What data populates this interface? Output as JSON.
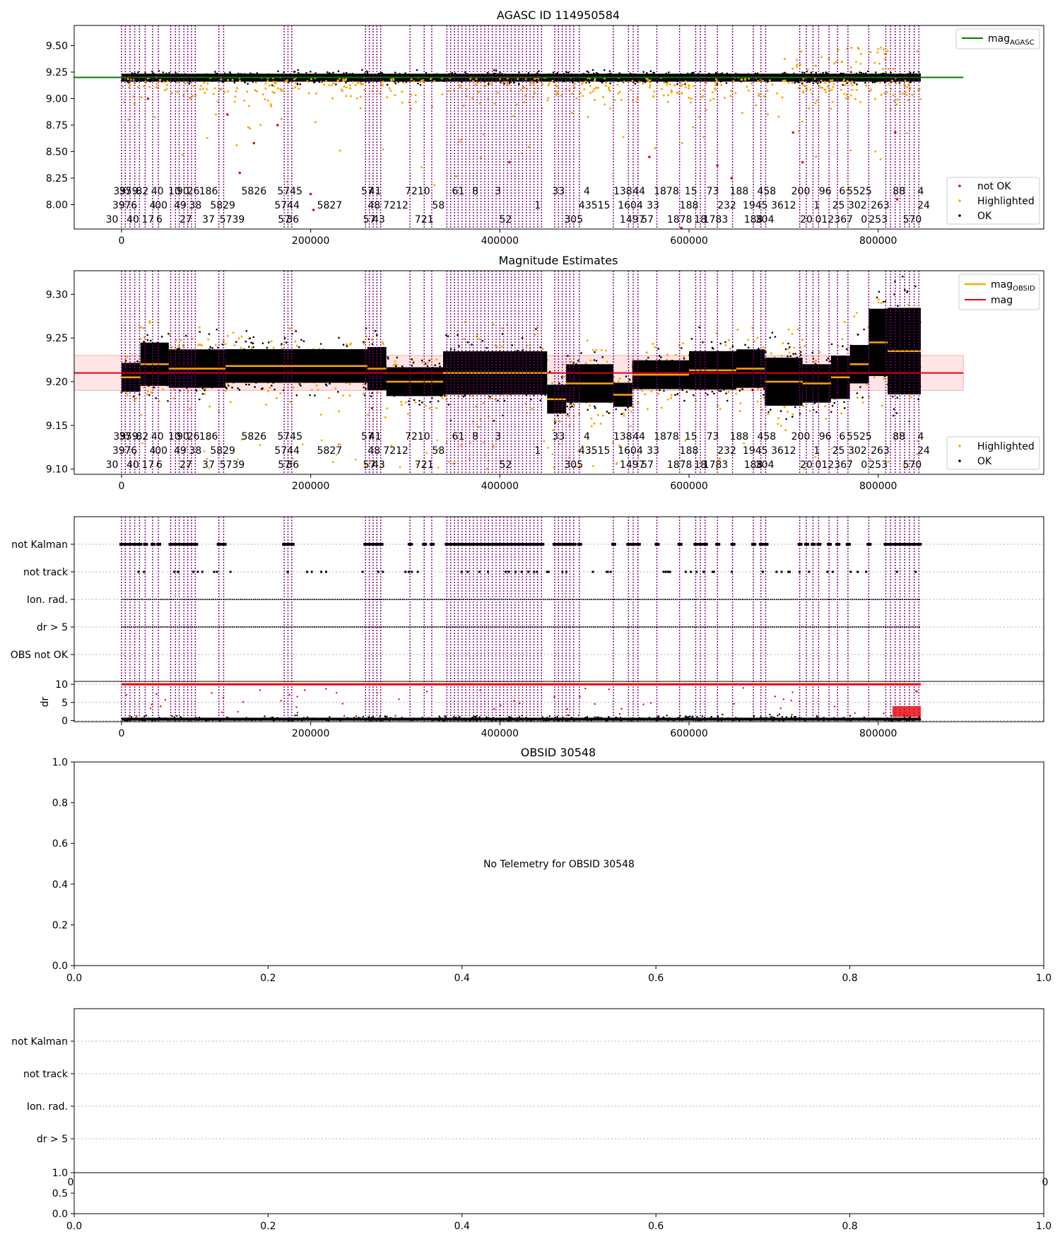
{
  "chart_data": [
    {
      "panel": "agasc",
      "type": "scatter",
      "title": "AGASC ID 114950584",
      "xlim": [
        -50000,
        975000
      ],
      "ylim": [
        7.77,
        9.69
      ],
      "xticks": [
        0,
        200000,
        400000,
        600000,
        800000
      ],
      "xtick_labels": [
        "0",
        "200000",
        "400000",
        "600000",
        "800000"
      ],
      "yticks": [
        8.0,
        8.25,
        8.5,
        8.75,
        9.0,
        9.25,
        9.5
      ],
      "ytick_labels": [
        "8.00",
        "8.25",
        "8.50",
        "8.75",
        "9.00",
        "9.25",
        "9.50"
      ],
      "mag_agasc": 9.2,
      "mag_agasc_xrange": [
        -50000,
        890000
      ],
      "ok_band": [
        9.15,
        9.27
      ],
      "legend_top": [
        "mag$_{AGASC}$"
      ],
      "legend_top_position": "upper right",
      "legend_bottom": [
        "not OK",
        "Highlighted",
        "OK"
      ],
      "legend_bottom_position": "lower right",
      "colors": {
        "ok": "#000000",
        "highlighted": "#ffa500",
        "not_ok": "#e8000b",
        "mag_agasc": "#008000",
        "obsid_line": "#800080"
      }
    },
    {
      "panel": "estimates",
      "type": "scatter",
      "title": "Magnitude Estimates",
      "xlim": [
        -50000,
        975000
      ],
      "ylim": [
        9.094,
        9.327
      ],
      "xticks": [
        0,
        200000,
        400000,
        600000,
        800000
      ],
      "xtick_labels": [
        "0",
        "200000",
        "400000",
        "600000",
        "800000"
      ],
      "yticks": [
        9.1,
        9.15,
        9.2,
        9.25,
        9.3
      ],
      "ytick_labels": [
        "9.10",
        "9.15",
        "9.20",
        "9.25",
        "9.30"
      ],
      "mag": 9.21,
      "mag_band": [
        9.19,
        9.23
      ],
      "legend_top": [
        "mag$_{OBSID}$",
        "mag"
      ],
      "legend_top_position": "upper right",
      "legend_bottom": [
        "Highlighted",
        "OK"
      ],
      "legend_bottom_position": "lower right",
      "mag_obsid_segments": [
        {
          "x": [
            0,
            20000
          ],
          "y": 9.205
        },
        {
          "x": [
            20000,
            50000
          ],
          "y": 9.22
        },
        {
          "x": [
            50000,
            110000
          ],
          "y": 9.215
        },
        {
          "x": [
            110000,
            260000
          ],
          "y": 9.218
        },
        {
          "x": [
            260000,
            280000
          ],
          "y": 9.215
        },
        {
          "x": [
            280000,
            340000
          ],
          "y": 9.2
        },
        {
          "x": [
            340000,
            450000
          ],
          "y": 9.21
        },
        {
          "x": [
            450000,
            470000
          ],
          "y": 9.18
        },
        {
          "x": [
            470000,
            520000
          ],
          "y": 9.198
        },
        {
          "x": [
            520000,
            540000
          ],
          "y": 9.185
        },
        {
          "x": [
            540000,
            600000
          ],
          "y": 9.208
        },
        {
          "x": [
            600000,
            650000
          ],
          "y": 9.213
        },
        {
          "x": [
            650000,
            680000
          ],
          "y": 9.215
        },
        {
          "x": [
            680000,
            720000
          ],
          "y": 9.2
        },
        {
          "x": [
            720000,
            750000
          ],
          "y": 9.198
        },
        {
          "x": [
            750000,
            770000
          ],
          "y": 9.205
        },
        {
          "x": [
            770000,
            790000
          ],
          "y": 9.22
        },
        {
          "x": [
            790000,
            810000
          ],
          "y": 9.245
        },
        {
          "x": [
            810000,
            845000
          ],
          "y": 9.235
        }
      ]
    },
    {
      "panel": "flags",
      "type": "scatter",
      "xlim": [
        -50000,
        975000
      ],
      "categories": [
        "not Kalman",
        "not track",
        "Ion. rad.",
        "dr > 5",
        "OBS not OK"
      ],
      "ylabel": "dr",
      "dr_yticks": [
        0,
        5,
        10
      ],
      "dr_ytick_labels": [
        "0",
        "5",
        "10"
      ],
      "dr_ylim": [
        -0.3,
        10.8
      ],
      "xticks": [
        0,
        200000,
        400000,
        600000,
        800000
      ],
      "xtick_labels": [
        "0",
        "200000",
        "400000",
        "600000",
        "800000"
      ]
    },
    {
      "panel": "obsid",
      "type": "scatter",
      "title": "OBSID 30548",
      "message": "No Telemetry for OBSID 30548",
      "xlim": [
        0,
        1
      ],
      "ylim": [
        0,
        1
      ],
      "xticks": [
        0,
        0.2,
        0.4,
        0.6,
        0.8,
        1.0
      ],
      "xtick_labels": [
        "0.0",
        "0.2",
        "0.4",
        "0.6",
        "0.8",
        "1.0"
      ],
      "yticks": [
        0,
        0.2,
        0.4,
        0.6,
        0.8,
        1.0
      ],
      "ytick_labels": [
        "0.0",
        "0.2",
        "0.4",
        "0.6",
        "0.8",
        "1.0"
      ]
    },
    {
      "panel": "obsid_flags",
      "type": "scatter",
      "categories": [
        "not Kalman",
        "not track",
        "Ion. rad.",
        "dr > 5"
      ],
      "yticks": [
        0,
        0.5,
        1.0
      ],
      "ytick_labels": [
        "0.0",
        "0.5",
        "1.0"
      ],
      "xticks": [
        0,
        0.2,
        0.4,
        0.6,
        0.8,
        1.0
      ],
      "xtick_labels": [
        "0.0",
        "0.2",
        "0.4",
        "0.6",
        "0.8",
        "1.0"
      ],
      "corner_labels": [
        "0",
        "0"
      ]
    }
  ],
  "obsid_lines": [
    0,
    4000,
    9000,
    14000,
    19000,
    25000,
    33000,
    39000,
    52000,
    57000,
    61000,
    66000,
    70000,
    74000,
    78000,
    103000,
    108000,
    172000,
    176000,
    180000,
    258000,
    262000,
    266000,
    270000,
    274000,
    305000,
    320000,
    328000,
    344000,
    348000,
    352000,
    356000,
    360000,
    364000,
    368000,
    372000,
    376000,
    380000,
    384000,
    388000,
    392000,
    396000,
    400000,
    404000,
    408000,
    412000,
    416000,
    420000,
    424000,
    428000,
    432000,
    436000,
    440000,
    444000,
    458000,
    462000,
    466000,
    470000,
    474000,
    478000,
    484000,
    520000,
    536000,
    541000,
    546000,
    566000,
    590000,
    607000,
    612000,
    617000,
    630000,
    646000,
    668000,
    676000,
    681000,
    717000,
    724000,
    731000,
    737000,
    748000,
    757000,
    768000,
    790000,
    808000,
    813000,
    818000,
    823000,
    828000,
    833000,
    838000,
    843000
  ],
  "obsid_labels_top": [
    {
      "x": -2000,
      "text": "39"
    },
    {
      "x": 4000,
      "text": "37"
    },
    {
      "x": 11000,
      "text": "59"
    },
    {
      "x": 22000,
      "text": "82"
    },
    {
      "x": 38000,
      "text": "40"
    },
    {
      "x": 56000,
      "text": "10"
    },
    {
      "x": 65000,
      "text": "90"
    },
    {
      "x": 76000,
      "text": "26"
    },
    {
      "x": 92000,
      "text": "186"
    },
    {
      "x": 140000,
      "text": "5826"
    },
    {
      "x": 178000,
      "text": "5745"
    },
    {
      "x": 260000,
      "text": "57"
    },
    {
      "x": 268000,
      "text": "41"
    },
    {
      "x": 313000,
      "text": "7210"
    },
    {
      "x": 356000,
      "text": "61"
    },
    {
      "x": 374000,
      "text": "8"
    },
    {
      "x": 398000,
      "text": "3"
    },
    {
      "x": 462000,
      "text": "33"
    },
    {
      "x": 492000,
      "text": "4"
    },
    {
      "x": 530000,
      "text": "138"
    },
    {
      "x": 547000,
      "text": "44"
    },
    {
      "x": 576000,
      "text": "1878"
    },
    {
      "x": 602000,
      "text": "15"
    },
    {
      "x": 625000,
      "text": "73"
    },
    {
      "x": 653000,
      "text": "188"
    },
    {
      "x": 682000,
      "text": "458"
    },
    {
      "x": 718000,
      "text": "200"
    },
    {
      "x": 744000,
      "text": "96"
    },
    {
      "x": 762000,
      "text": "6"
    },
    {
      "x": 780000,
      "text": "5525"
    },
    {
      "x": 822000,
      "text": "88"
    },
    {
      "x": 845000,
      "text": "4"
    }
  ],
  "obsid_labels_mid": [
    {
      "x": -3000,
      "text": "39"
    },
    {
      "x": 10000,
      "text": "76"
    },
    {
      "x": 33000,
      "text": "4"
    },
    {
      "x": 42000,
      "text": "00"
    },
    {
      "x": 62000,
      "text": "49"
    },
    {
      "x": 78000,
      "text": "38"
    },
    {
      "x": 107000,
      "text": "5829"
    },
    {
      "x": 175000,
      "text": "5744"
    },
    {
      "x": 220000,
      "text": "5827"
    },
    {
      "x": 267000,
      "text": "48"
    },
    {
      "x": 290000,
      "text": "7212"
    },
    {
      "x": 335000,
      "text": "58"
    },
    {
      "x": 440000,
      "text": "1"
    },
    {
      "x": 500000,
      "text": "43515"
    },
    {
      "x": 538000,
      "text": "1604"
    },
    {
      "x": 562000,
      "text": "33"
    },
    {
      "x": 600000,
      "text": "188"
    },
    {
      "x": 640000,
      "text": "232"
    },
    {
      "x": 670000,
      "text": "1945"
    },
    {
      "x": 700000,
      "text": "3612"
    },
    {
      "x": 735000,
      "text": "1"
    },
    {
      "x": 758000,
      "text": "25"
    },
    {
      "x": 778000,
      "text": "302"
    },
    {
      "x": 802000,
      "text": "263"
    },
    {
      "x": 848000,
      "text": "24"
    }
  ],
  "obsid_labels_bot": [
    {
      "x": -10000,
      "text": "30"
    },
    {
      "x": 12000,
      "text": "40"
    },
    {
      "x": 28000,
      "text": "17"
    },
    {
      "x": 40000,
      "text": "6"
    },
    {
      "x": 68000,
      "text": "27"
    },
    {
      "x": 92000,
      "text": "37"
    },
    {
      "x": 117000,
      "text": "5739"
    },
    {
      "x": 172000,
      "text": "57"
    },
    {
      "x": 181000,
      "text": "36"
    },
    {
      "x": 262000,
      "text": "57"
    },
    {
      "x": 272000,
      "text": "43"
    },
    {
      "x": 320000,
      "text": "721"
    },
    {
      "x": 406000,
      "text": "52"
    },
    {
      "x": 478000,
      "text": "305"
    },
    {
      "x": 540000,
      "text": "1497"
    },
    {
      "x": 556000,
      "text": "57"
    },
    {
      "x": 590000,
      "text": "1878"
    },
    {
      "x": 612000,
      "text": "18"
    },
    {
      "x": 628000,
      "text": "1783"
    },
    {
      "x": 668000,
      "text": "188"
    },
    {
      "x": 680000,
      "text": "304"
    },
    {
      "x": 724000,
      "text": "20"
    },
    {
      "x": 740000,
      "text": "01"
    },
    {
      "x": 760000,
      "text": "2367"
    },
    {
      "x": 785000,
      "text": "0"
    },
    {
      "x": 800000,
      "text": "253"
    },
    {
      "x": 836000,
      "text": "570"
    }
  ]
}
